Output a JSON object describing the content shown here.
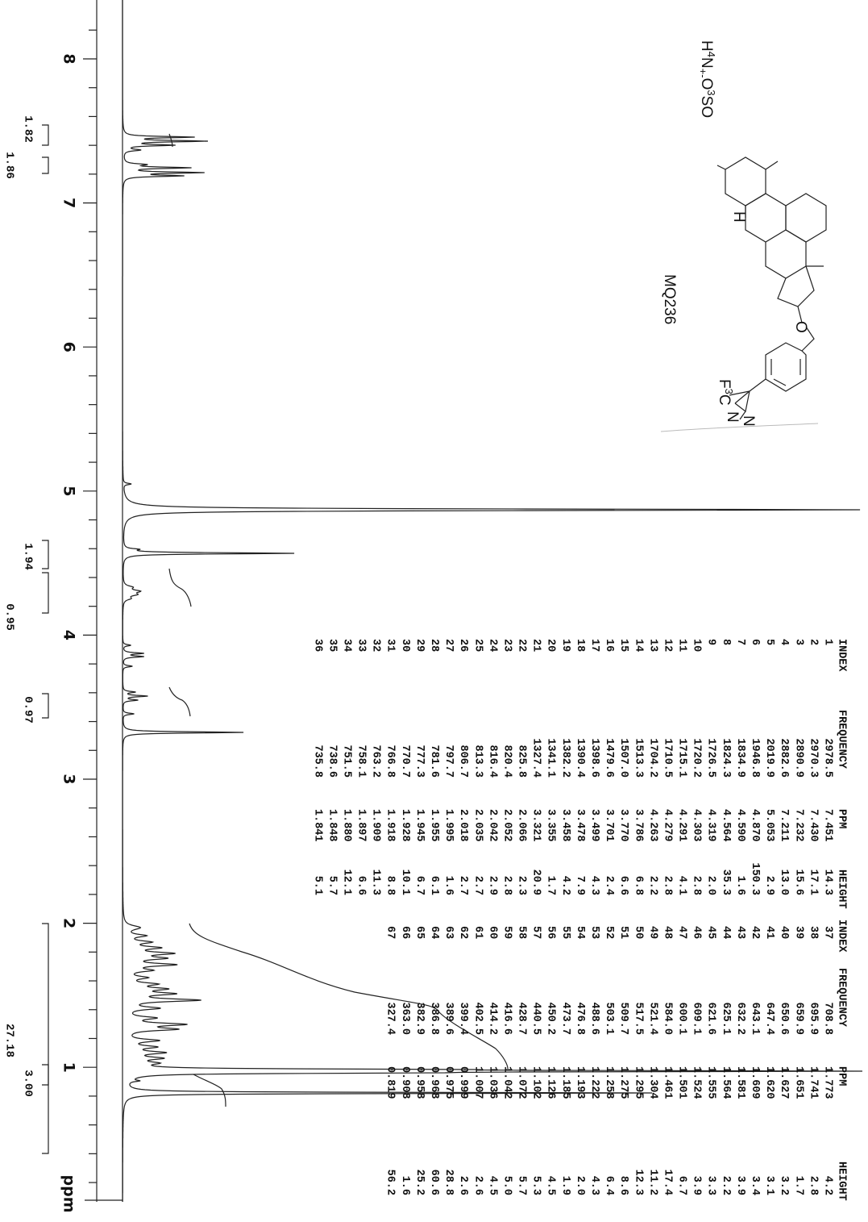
{
  "axis": {
    "ticks": [
      "8",
      "7",
      "6",
      "5",
      "4",
      "3",
      "2",
      "1"
    ],
    "unit": "ppm"
  },
  "integrals": [
    "1.82",
    "1.86",
    "1.94",
    "0.95",
    "0.97",
    "27.18",
    "3.00"
  ],
  "compound": {
    "name": "MQ236",
    "counterion": [
      "H",
      "4",
      "N",
      "+",
      "-",
      "O",
      "3",
      "SO"
    ],
    "hydrogen": "H",
    "oxygen": "O",
    "cf3": [
      "F",
      "3",
      "C"
    ],
    "nitrogen_1": "N",
    "nitrogen_2": "N"
  },
  "peak_table": [
    {
      "headers": [
        "INDEX",
        "FREQUENCY",
        "PPM",
        "HEIGHT"
      ],
      "rows": [
        [
          "1",
          "2978.5",
          "7.451",
          "14.3"
        ],
        [
          "2",
          "2970.3",
          "7.430",
          "17.1"
        ],
        [
          "3",
          "2890.9",
          "7.232",
          "15.6"
        ],
        [
          "4",
          "2882.6",
          "7.211",
          "13.0"
        ],
        [
          "5",
          "2019.9",
          "5.053",
          "2.9"
        ],
        [
          "6",
          "1946.8",
          "4.870",
          "150.3"
        ],
        [
          "7",
          "1834.9",
          "4.590",
          "1.6"
        ],
        [
          "8",
          "1824.3",
          "4.564",
          "35.3"
        ],
        [
          "9",
          "1726.5",
          "4.319",
          "2.0"
        ],
        [
          "10",
          "1720.2",
          "4.303",
          "2.8"
        ],
        [
          "11",
          "1715.1",
          "4.291",
          "4.1"
        ],
        [
          "12",
          "1710.5",
          "4.279",
          "2.8"
        ],
        [
          "13",
          "1704.2",
          "4.263",
          "2.2"
        ],
        [
          "14",
          "1513.3",
          "3.786",
          "6.8"
        ],
        [
          "15",
          "1507.0",
          "3.770",
          "6.6"
        ],
        [
          "16",
          "1479.6",
          "3.701",
          "2.4"
        ],
        [
          "17",
          "1398.6",
          "3.499",
          "4.3"
        ],
        [
          "18",
          "1390.4",
          "3.478",
          "7.9"
        ],
        [
          "19",
          "1382.2",
          "3.458",
          "4.2"
        ],
        [
          "20",
          "1341.1",
          "3.355",
          "1.7"
        ],
        [
          "21",
          "1327.4",
          "3.321",
          "20.9"
        ],
        [
          "22",
          "825.8",
          "2.066",
          "2.3"
        ],
        [
          "23",
          "820.4",
          "2.052",
          "2.8"
        ],
        [
          "24",
          "816.4",
          "2.042",
          "2.9"
        ],
        [
          "25",
          "813.3",
          "2.035",
          "2.7"
        ],
        [
          "26",
          "806.7",
          "2.018",
          "2.7"
        ],
        [
          "27",
          "797.7",
          "1.995",
          "1.6"
        ],
        [
          "28",
          "781.6",
          "1.955",
          "6.1"
        ],
        [
          "29",
          "777.3",
          "1.945",
          "6.7"
        ],
        [
          "30",
          "770.7",
          "1.928",
          "10.1"
        ],
        [
          "31",
          "766.8",
          "1.918",
          "8.8"
        ],
        [
          "32",
          "763.2",
          "1.909",
          "11.3"
        ],
        [
          "33",
          "758.1",
          "1.897",
          "6.6"
        ],
        [
          "34",
          "751.5",
          "1.880",
          "12.1"
        ],
        [
          "35",
          "738.6",
          "1.848",
          "5.7"
        ],
        [
          "36",
          "735.8",
          "1.841",
          "5.1"
        ]
      ]
    },
    {
      "headers": [
        "INDEX",
        "FREQUENCY",
        "PPM",
        "HEIGHT"
      ],
      "rows": [
        [
          "37",
          "708.8",
          "1.773",
          "4.2"
        ],
        [
          "38",
          "695.9",
          "1.741",
          "2.8"
        ],
        [
          "39",
          "659.9",
          "1.651",
          "1.7"
        ],
        [
          "40",
          "650.6",
          "1.627",
          "3.2"
        ],
        [
          "41",
          "647.4",
          "1.620",
          "3.1"
        ],
        [
          "42",
          "643.1",
          "1.609",
          "3.4"
        ],
        [
          "43",
          "632.2",
          "1.581",
          "3.9"
        ],
        [
          "44",
          "625.1",
          "1.564",
          "2.2"
        ],
        [
          "45",
          "621.6",
          "1.555",
          "3.3"
        ],
        [
          "46",
          "609.1",
          "1.524",
          "3.9"
        ],
        [
          "47",
          "600.1",
          "1.501",
          "6.7"
        ],
        [
          "48",
          "584.0",
          "1.461",
          "17.4"
        ],
        [
          "49",
          "521.4",
          "1.304",
          "11.2"
        ],
        [
          "50",
          "517.5",
          "1.295",
          "12.3"
        ],
        [
          "51",
          "509.7",
          "1.275",
          "8.6"
        ],
        [
          "52",
          "503.1",
          "1.258",
          "6.4"
        ],
        [
          "53",
          "488.6",
          "1.222",
          "4.3"
        ],
        [
          "54",
          "476.8",
          "1.193",
          "2.0"
        ],
        [
          "55",
          "473.7",
          "1.185",
          "1.9"
        ],
        [
          "56",
          "450.2",
          "1.126",
          "4.5"
        ],
        [
          "57",
          "440.5",
          "1.102",
          "5.3"
        ],
        [
          "58",
          "428.7",
          "1.072",
          "5.7"
        ],
        [
          "59",
          "416.6",
          "1.042",
          "5.0"
        ],
        [
          "60",
          "414.2",
          "1.036",
          "4.5"
        ],
        [
          "61",
          "402.5",
          "1.007",
          "2.6"
        ],
        [
          "62",
          "399.4",
          "0.999",
          "2.6"
        ],
        [
          "63",
          "389.6",
          "0.975",
          "28.8"
        ],
        [
          "64",
          "386.8",
          "0.968",
          "60.6"
        ],
        [
          "65",
          "382.9",
          "0.958",
          "25.2"
        ],
        [
          "66",
          "363.0",
          "0.908",
          "1.6"
        ],
        [
          "67",
          "327.4",
          "0.819",
          "56.2"
        ]
      ]
    }
  ]
}
